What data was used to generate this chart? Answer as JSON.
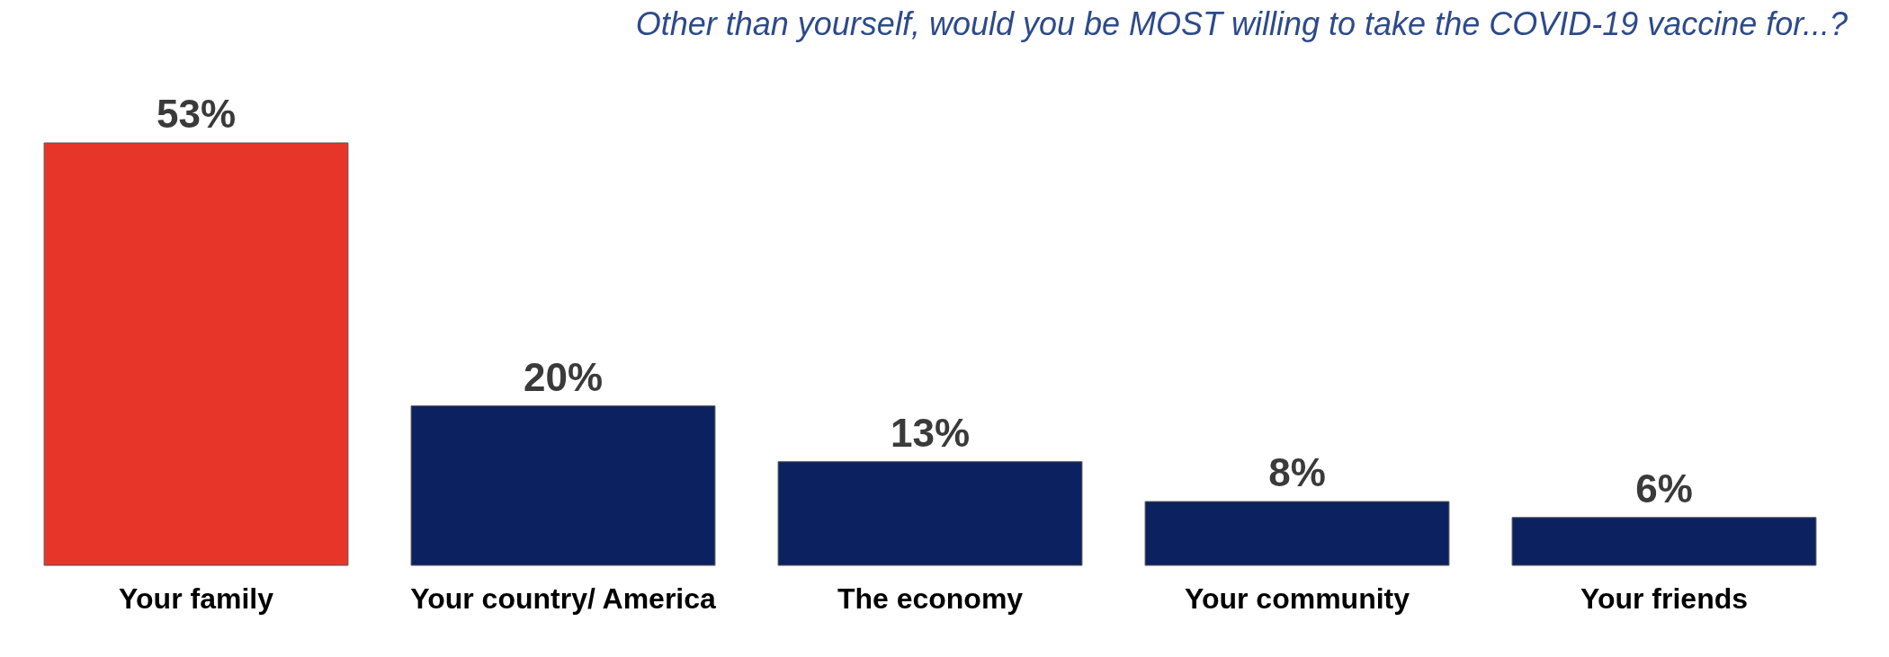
{
  "chart_data": {
    "type": "bar",
    "title": "Other than yourself, would you be MOST willing to take the COVID-19 vaccine for...?",
    "categories": [
      "Your family",
      "Your country/ America",
      "The economy",
      "Your community",
      "Your friends"
    ],
    "values": [
      53,
      20,
      13,
      8,
      6
    ],
    "value_labels": [
      "53%",
      "20%",
      "13%",
      "8%",
      "6%"
    ],
    "colors": [
      "#e8352a",
      "#0c2160",
      "#0c2160",
      "#0c2160",
      "#0c2160"
    ]
  }
}
